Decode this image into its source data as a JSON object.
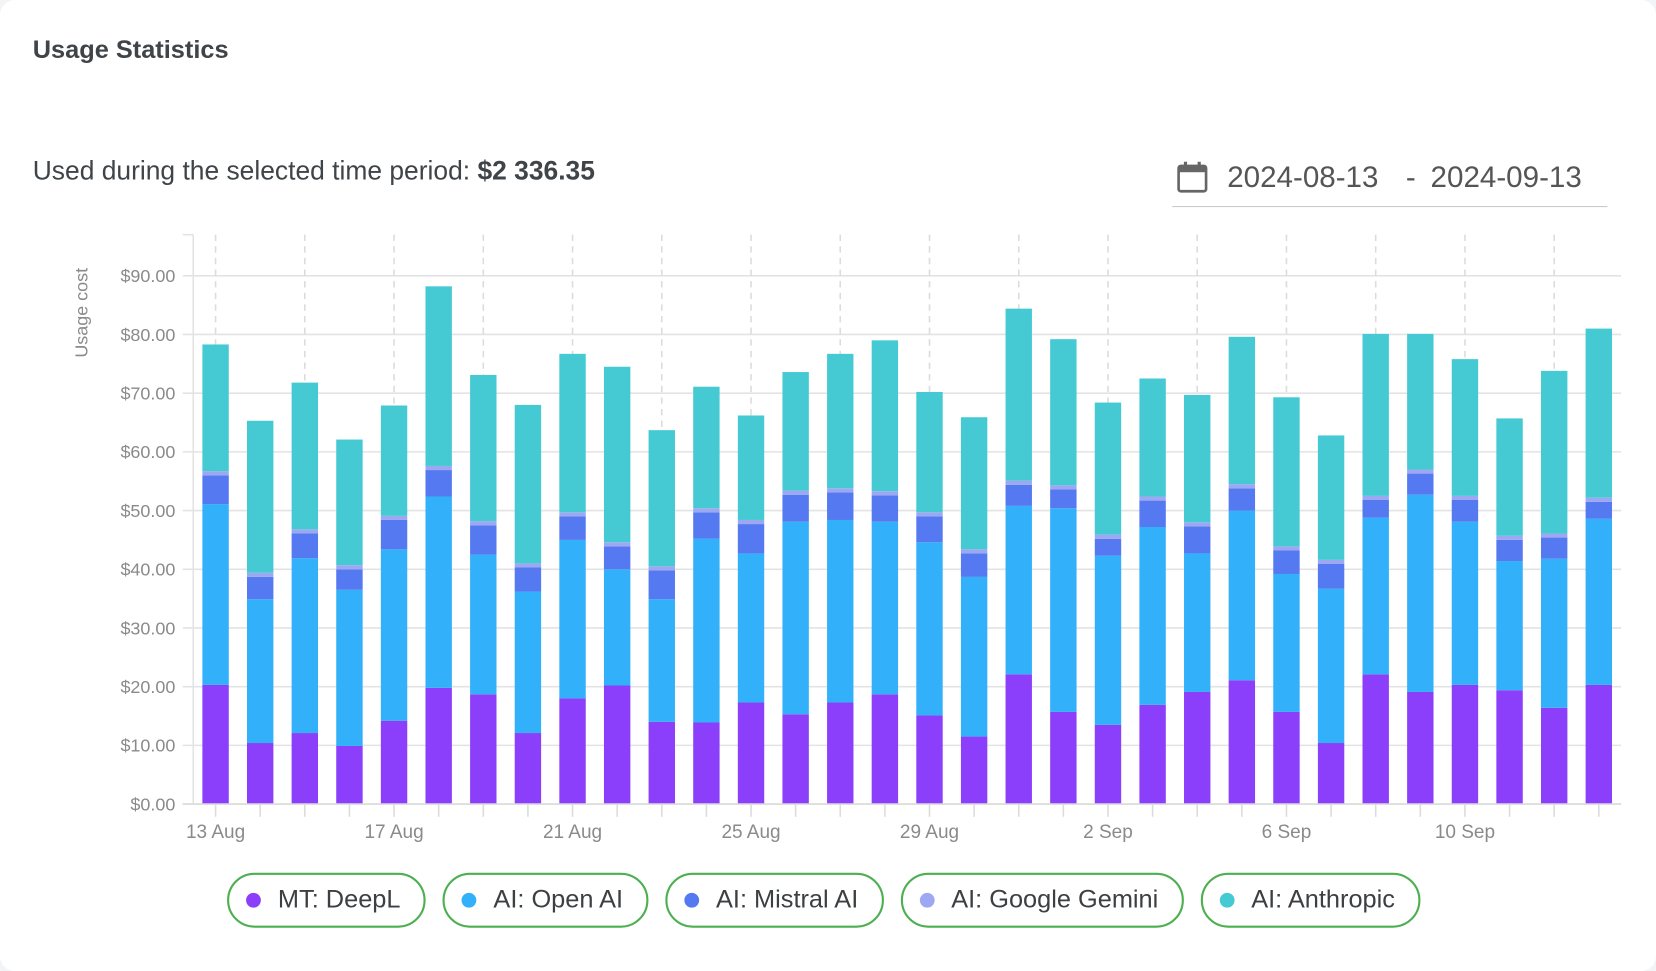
{
  "card": {
    "title": "Usage Statistics"
  },
  "summary": {
    "label": "Used during the selected time period:",
    "amount": "$2 336.35"
  },
  "date_range": {
    "icon": "calendar-icon",
    "start": "2024-08-13",
    "separator": "-",
    "end": "2024-09-13"
  },
  "chart_data": {
    "type": "bar",
    "stacked": true,
    "ylabel": "Usage cost",
    "ylim": [
      0,
      97
    ],
    "yticks": [
      "$0.00",
      "$10.00",
      "$20.00",
      "$30.00",
      "$40.00",
      "$50.00",
      "$60.00",
      "$70.00",
      "$80.00",
      "$90.00"
    ],
    "ytick_values": [
      0,
      10,
      20,
      30,
      40,
      50,
      60,
      70,
      80,
      90
    ],
    "grid": true,
    "legend_position": "bottom",
    "categories": [
      "13 Aug",
      "14 Aug",
      "15 Aug",
      "16 Aug",
      "17 Aug",
      "18 Aug",
      "19 Aug",
      "20 Aug",
      "21 Aug",
      "22 Aug",
      "23 Aug",
      "24 Aug",
      "25 Aug",
      "26 Aug",
      "27 Aug",
      "28 Aug",
      "29 Aug",
      "30 Aug",
      "31 Aug",
      "1 Sep",
      "2 Sep",
      "3 Sep",
      "4 Sep",
      "5 Sep",
      "6 Sep",
      "7 Sep",
      "8 Sep",
      "9 Sep",
      "10 Sep",
      "11 Sep",
      "12 Sep",
      "13 Sep"
    ],
    "xtick_labels": [
      "13 Aug",
      "17 Aug",
      "21 Aug",
      "25 Aug",
      "29 Aug",
      "2 Sep",
      "6 Sep",
      "10 Sep"
    ],
    "series": [
      {
        "name": "MT: DeepL",
        "color": "#8b3ffa",
        "values": [
          20.3,
          10.4,
          12.1,
          9.9,
          14.2,
          19.8,
          18.7,
          12.1,
          18.0,
          20.2,
          14.0,
          13.9,
          17.3,
          15.3,
          17.3,
          18.7,
          15.1,
          11.5,
          22.1,
          15.7,
          13.5,
          16.9,
          19.1,
          21.1,
          15.7,
          10.4,
          22.1,
          19.1,
          20.3,
          19.4,
          16.4,
          20.3
        ]
      },
      {
        "name": "AI: Open AI",
        "color": "#33b0fa",
        "values": [
          30.8,
          24.5,
          29.8,
          26.6,
          29.2,
          32.6,
          23.8,
          24.1,
          27.0,
          19.8,
          20.9,
          31.3,
          25.4,
          32.8,
          31.1,
          29.4,
          29.5,
          27.2,
          28.7,
          34.7,
          28.8,
          30.3,
          23.6,
          28.9,
          23.5,
          26.3,
          26.7,
          33.6,
          27.8,
          22.0,
          25.4,
          28.3
        ]
      },
      {
        "name": "AI: Mistral AI",
        "color": "#5479f0",
        "values": [
          4.9,
          3.8,
          4.2,
          3.5,
          5.0,
          4.5,
          5.0,
          4.1,
          4.0,
          3.9,
          4.9,
          4.5,
          5.0,
          4.6,
          4.7,
          4.5,
          4.4,
          4.0,
          3.6,
          3.2,
          2.9,
          4.5,
          4.6,
          3.8,
          4.0,
          4.2,
          3.0,
          3.6,
          3.7,
          3.6,
          3.6,
          2.9
        ]
      },
      {
        "name": "AI: Google Gemini",
        "color": "#9ea8f2",
        "values": [
          0.7,
          0.7,
          0.7,
          0.7,
          0.7,
          0.7,
          0.7,
          0.7,
          0.7,
          0.7,
          0.7,
          0.7,
          0.7,
          0.7,
          0.7,
          0.7,
          0.7,
          0.7,
          0.7,
          0.7,
          0.7,
          0.7,
          0.7,
          0.7,
          0.7,
          0.7,
          0.7,
          0.7,
          0.7,
          0.7,
          0.7,
          0.7
        ]
      },
      {
        "name": "AI: Anthropic",
        "color": "#45cad3",
        "values": [
          21.6,
          25.9,
          25.0,
          21.4,
          18.8,
          30.6,
          24.9,
          27.0,
          27.0,
          29.9,
          23.2,
          20.7,
          17.8,
          20.2,
          22.9,
          25.7,
          20.5,
          22.5,
          29.3,
          24.9,
          22.5,
          20.1,
          21.7,
          25.1,
          25.4,
          21.2,
          27.6,
          23.1,
          23.3,
          20.0,
          27.7,
          28.8
        ]
      }
    ]
  }
}
